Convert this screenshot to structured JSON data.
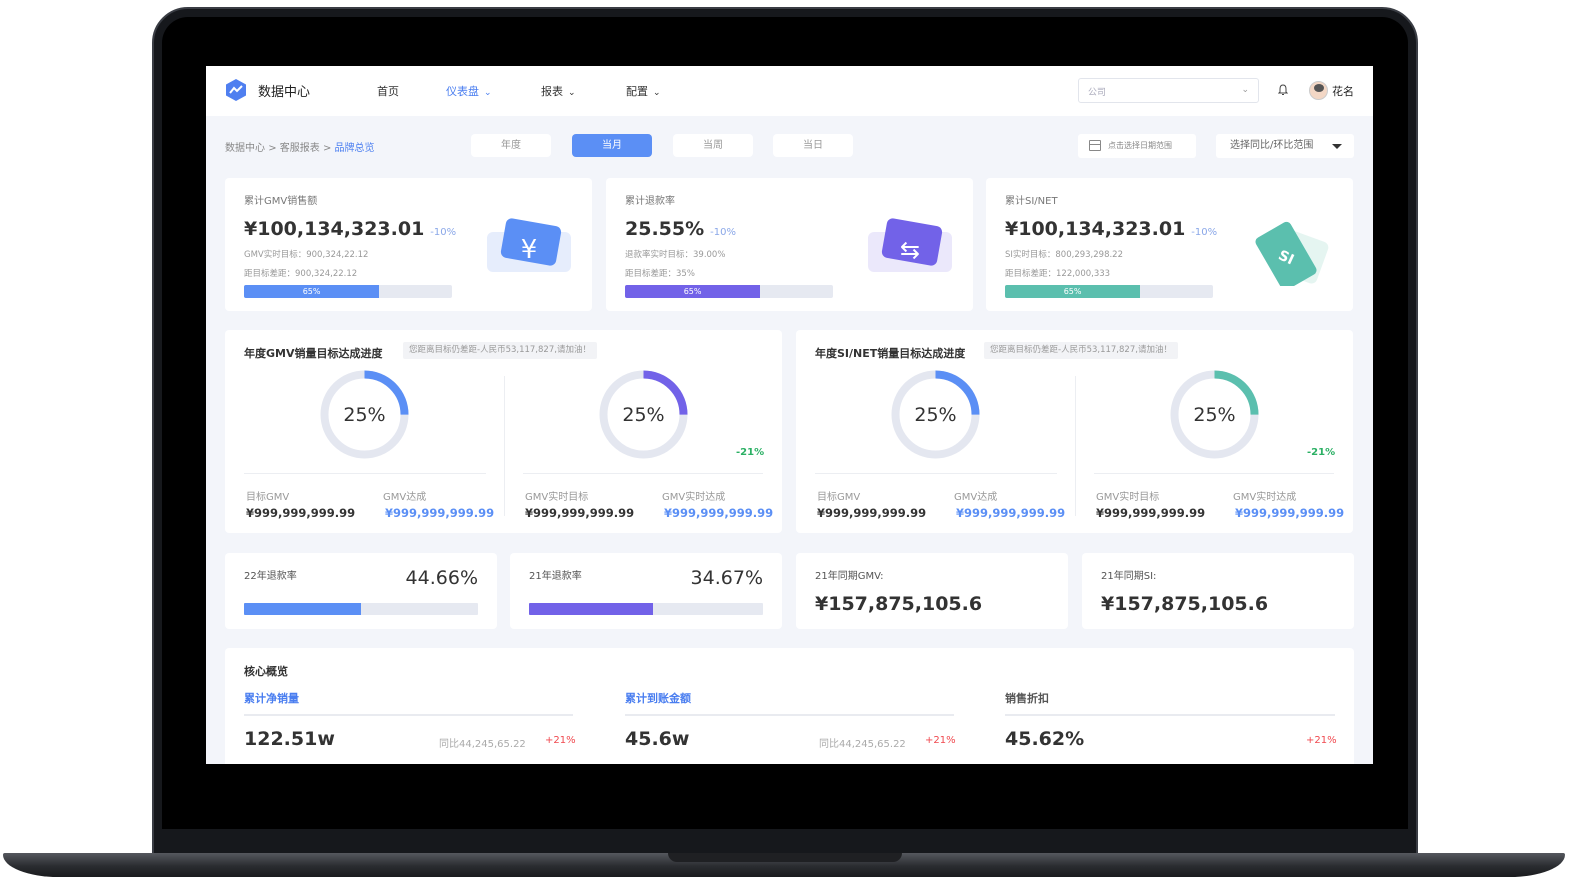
{
  "app": {
    "brand": "数据中心",
    "user": "花名"
  },
  "nav": [
    {
      "label": "首页"
    },
    {
      "label": "仪表盘"
    },
    {
      "label": "报表"
    },
    {
      "label": "配置"
    }
  ],
  "company": {
    "placeholder": "公司"
  },
  "breadcrumb": {
    "items": [
      "数据中心",
      "客服报表",
      "品牌总览"
    ]
  },
  "period": [
    "年度",
    "当月",
    "当周",
    "当日"
  ],
  "date_range": "点击选择日期范围",
  "compare_select": "选择同比/环比范围",
  "kpis": [
    {
      "title": "累计GMV销售额",
      "value": "¥100,134,323.01",
      "change": "-10%",
      "sub1": "GMV实时目标：900,324,22.12",
      "sub2": "距目标差距：900,324,22.12",
      "progress": "65%",
      "color": "#5b8ff5",
      "icon": "yuan-ticket-icon",
      "glyph": "¥"
    },
    {
      "title": "累计退款率",
      "value": "25.55%",
      "change": "-10%",
      "sub1": "退款率实时目标：39.00%",
      "sub2": "距目标差距：35%",
      "progress": "65%",
      "color": "#7262e8",
      "icon": "refund-transfer-icon",
      "glyph": "⇆"
    },
    {
      "title": "累计SI/NET",
      "value": "¥100,134,323.01",
      "change": "-10%",
      "sub1": "SI实时目标：800,293,298.22",
      "sub2": "距目标差距：122,000,333",
      "progress": "65%",
      "color": "#5bbfae",
      "icon": "si-tag-icon",
      "glyph": "SI"
    }
  ],
  "gauges": [
    {
      "title": "年度GMV销量目标达成进度",
      "tip": "您距离目标仍差距-人民币53,117,827,请加油！",
      "rings": [
        {
          "pct": "25%",
          "color": "#5b8ff5",
          "delta": ""
        },
        {
          "pct": "25%",
          "color": "#7262e8",
          "delta": "-21%"
        }
      ],
      "stats": [
        {
          "label": "目标GMV",
          "value": "¥999,999,999.99"
        },
        {
          "label": "GMV达成",
          "value": "¥999,999,999.99"
        },
        {
          "label": "GMV实时目标",
          "value": "¥999,999,999.99"
        },
        {
          "label": "GMV实时达成",
          "value": "¥999,999,999.99"
        }
      ]
    },
    {
      "title": "年度SI/NET销量目标达成进度",
      "tip": "您距离目标仍差距-人民币53,117,827,请加油！",
      "rings": [
        {
          "pct": "25%",
          "color": "#5b8ff5",
          "delta": ""
        },
        {
          "pct": "25%",
          "color": "#5bbfae",
          "delta": "-21%"
        }
      ],
      "stats": [
        {
          "label": "目标GMV",
          "value": "¥999,999,999.99"
        },
        {
          "label": "GMV达成",
          "value": "¥999,999,999.99"
        },
        {
          "label": "GMV实时目标",
          "value": "¥999,999,999.99"
        },
        {
          "label": "GMV实时达成",
          "value": "¥999,999,999.99"
        }
      ]
    }
  ],
  "refund": [
    {
      "title": "22年退款率",
      "value": "44.66%",
      "level": 0.5,
      "color": "#5b8ff5"
    },
    {
      "title": "21年退款率",
      "value": "34.67%",
      "level": 0.53,
      "color": "#7262e8"
    }
  ],
  "same_period": [
    {
      "title": "21年同期GMV:",
      "value": "¥157,875,105.6"
    },
    {
      "title": "21年同期SI:",
      "value": "¥157,875,105.6"
    }
  ],
  "core": {
    "title": "核心概览",
    "items": [
      {
        "label": "累计净销量",
        "value": "122.51w",
        "compare": "同比44,245,65.22",
        "pct": "+21%"
      },
      {
        "label": "累计到账金额",
        "value": "45.6w",
        "compare": "同比44,245,65.22",
        "pct": "+21%"
      },
      {
        "label": "销售折扣",
        "value": "45.62%",
        "compare": "",
        "pct": "+21%"
      }
    ]
  }
}
